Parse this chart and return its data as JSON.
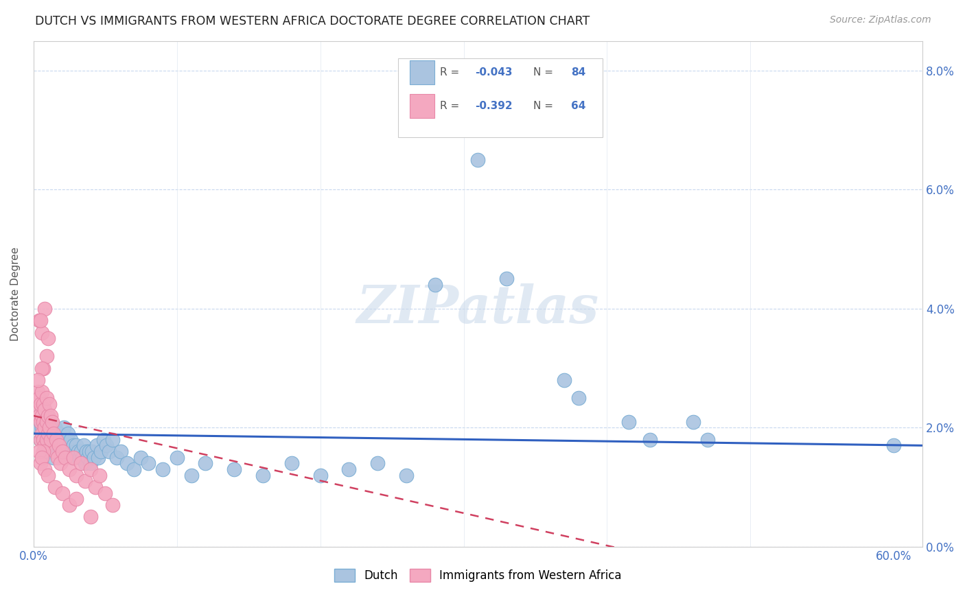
{
  "title": "DUTCH VS IMMIGRANTS FROM WESTERN AFRICA DOCTORATE DEGREE CORRELATION CHART",
  "source": "Source: ZipAtlas.com",
  "ylabel": "Doctorate Degree",
  "dutch_color": "#aac4e0",
  "dutch_edge_color": "#7aadd4",
  "immig_color": "#f4a8c0",
  "immig_edge_color": "#e888a8",
  "dutch_line_color": "#3060c0",
  "immig_line_color": "#d04060",
  "watermark": "ZIPatlas",
  "xlim": [
    0.0,
    0.62
  ],
  "ylim": [
    0.0,
    0.085
  ],
  "ytick_values": [
    0.0,
    0.02,
    0.04,
    0.06,
    0.08
  ],
  "dutch_points": [
    [
      0.003,
      0.022
    ],
    [
      0.004,
      0.02
    ],
    [
      0.005,
      0.021
    ],
    [
      0.005,
      0.018
    ],
    [
      0.006,
      0.022
    ],
    [
      0.006,
      0.02
    ],
    [
      0.007,
      0.023
    ],
    [
      0.007,
      0.019
    ],
    [
      0.007,
      0.018
    ],
    [
      0.008,
      0.021
    ],
    [
      0.008,
      0.019
    ],
    [
      0.008,
      0.016
    ],
    [
      0.009,
      0.022
    ],
    [
      0.009,
      0.018
    ],
    [
      0.01,
      0.02
    ],
    [
      0.01,
      0.017
    ],
    [
      0.011,
      0.019
    ],
    [
      0.011,
      0.017
    ],
    [
      0.012,
      0.021
    ],
    [
      0.012,
      0.016
    ],
    [
      0.013,
      0.019
    ],
    [
      0.013,
      0.016
    ],
    [
      0.014,
      0.018
    ],
    [
      0.014,
      0.015
    ],
    [
      0.015,
      0.02
    ],
    [
      0.016,
      0.018
    ],
    [
      0.017,
      0.017
    ],
    [
      0.018,
      0.019
    ],
    [
      0.019,
      0.016
    ],
    [
      0.02,
      0.018
    ],
    [
      0.021,
      0.02
    ],
    [
      0.022,
      0.016
    ],
    [
      0.023,
      0.017
    ],
    [
      0.024,
      0.019
    ],
    [
      0.025,
      0.016
    ],
    [
      0.026,
      0.018
    ],
    [
      0.027,
      0.015
    ],
    [
      0.028,
      0.017
    ],
    [
      0.029,
      0.016
    ],
    [
      0.03,
      0.017
    ],
    [
      0.031,
      0.016
    ],
    [
      0.032,
      0.015
    ],
    [
      0.033,
      0.016
    ],
    [
      0.034,
      0.015
    ],
    [
      0.035,
      0.017
    ],
    [
      0.036,
      0.014
    ],
    [
      0.037,
      0.016
    ],
    [
      0.038,
      0.015
    ],
    [
      0.039,
      0.016
    ],
    [
      0.04,
      0.014
    ],
    [
      0.041,
      0.016
    ],
    [
      0.042,
      0.015
    ],
    [
      0.044,
      0.017
    ],
    [
      0.045,
      0.015
    ],
    [
      0.047,
      0.016
    ],
    [
      0.049,
      0.018
    ],
    [
      0.051,
      0.017
    ],
    [
      0.053,
      0.016
    ],
    [
      0.055,
      0.018
    ],
    [
      0.058,
      0.015
    ],
    [
      0.061,
      0.016
    ],
    [
      0.065,
      0.014
    ],
    [
      0.07,
      0.013
    ],
    [
      0.075,
      0.015
    ],
    [
      0.08,
      0.014
    ],
    [
      0.09,
      0.013
    ],
    [
      0.1,
      0.015
    ],
    [
      0.11,
      0.012
    ],
    [
      0.12,
      0.014
    ],
    [
      0.14,
      0.013
    ],
    [
      0.16,
      0.012
    ],
    [
      0.18,
      0.014
    ],
    [
      0.2,
      0.012
    ],
    [
      0.22,
      0.013
    ],
    [
      0.24,
      0.014
    ],
    [
      0.26,
      0.012
    ],
    [
      0.28,
      0.044
    ],
    [
      0.31,
      0.065
    ],
    [
      0.33,
      0.045
    ],
    [
      0.37,
      0.028
    ],
    [
      0.38,
      0.025
    ],
    [
      0.415,
      0.021
    ],
    [
      0.43,
      0.018
    ],
    [
      0.46,
      0.021
    ],
    [
      0.47,
      0.018
    ],
    [
      0.6,
      0.017
    ]
  ],
  "immig_points": [
    [
      0.003,
      0.026
    ],
    [
      0.003,
      0.023
    ],
    [
      0.004,
      0.025
    ],
    [
      0.004,
      0.022
    ],
    [
      0.005,
      0.024
    ],
    [
      0.005,
      0.021
    ],
    [
      0.005,
      0.018
    ],
    [
      0.006,
      0.026
    ],
    [
      0.006,
      0.022
    ],
    [
      0.006,
      0.019
    ],
    [
      0.007,
      0.024
    ],
    [
      0.007,
      0.021
    ],
    [
      0.007,
      0.018
    ],
    [
      0.008,
      0.023
    ],
    [
      0.008,
      0.02
    ],
    [
      0.008,
      0.017
    ],
    [
      0.009,
      0.025
    ],
    [
      0.009,
      0.021
    ],
    [
      0.009,
      0.018
    ],
    [
      0.01,
      0.022
    ],
    [
      0.01,
      0.019
    ],
    [
      0.011,
      0.024
    ],
    [
      0.011,
      0.02
    ],
    [
      0.012,
      0.022
    ],
    [
      0.012,
      0.018
    ],
    [
      0.013,
      0.021
    ],
    [
      0.014,
      0.019
    ],
    [
      0.015,
      0.016
    ],
    [
      0.016,
      0.018
    ],
    [
      0.017,
      0.015
    ],
    [
      0.018,
      0.017
    ],
    [
      0.019,
      0.014
    ],
    [
      0.02,
      0.016
    ],
    [
      0.022,
      0.015
    ],
    [
      0.025,
      0.013
    ],
    [
      0.028,
      0.015
    ],
    [
      0.03,
      0.012
    ],
    [
      0.033,
      0.014
    ],
    [
      0.036,
      0.011
    ],
    [
      0.04,
      0.013
    ],
    [
      0.043,
      0.01
    ],
    [
      0.046,
      0.012
    ],
    [
      0.05,
      0.009
    ],
    [
      0.055,
      0.007
    ],
    [
      0.004,
      0.038
    ],
    [
      0.006,
      0.036
    ],
    [
      0.008,
      0.04
    ],
    [
      0.01,
      0.035
    ],
    [
      0.007,
      0.03
    ],
    [
      0.009,
      0.032
    ],
    [
      0.005,
      0.038
    ],
    [
      0.006,
      0.03
    ],
    [
      0.003,
      0.028
    ],
    [
      0.007,
      0.016
    ],
    [
      0.004,
      0.016
    ],
    [
      0.005,
      0.014
    ],
    [
      0.006,
      0.015
    ],
    [
      0.008,
      0.013
    ],
    [
      0.01,
      0.012
    ],
    [
      0.015,
      0.01
    ],
    [
      0.02,
      0.009
    ],
    [
      0.025,
      0.007
    ],
    [
      0.03,
      0.008
    ],
    [
      0.04,
      0.005
    ]
  ]
}
